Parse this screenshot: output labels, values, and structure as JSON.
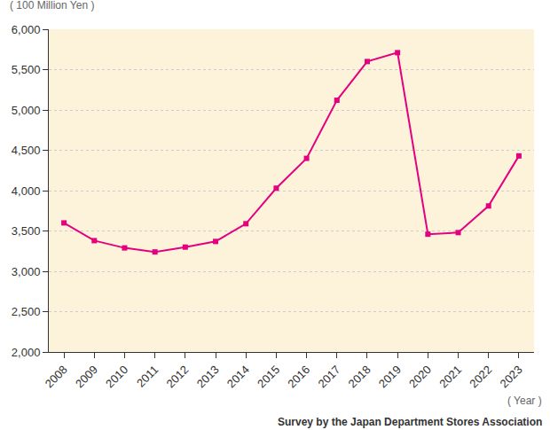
{
  "chart_data": {
    "type": "line",
    "ylabel": "( 100 Million Yen )",
    "xlabel": "( Year )",
    "annotations": [
      "Survey by the Japan Department Stores Association"
    ],
    "categories": [
      "2008",
      "2009",
      "2010",
      "2011",
      "2012",
      "2013",
      "2014",
      "2015",
      "2016",
      "2017",
      "2018",
      "2019",
      "2020",
      "2021",
      "2022",
      "2023"
    ],
    "values": [
      3600,
      3380,
      3290,
      3240,
      3300,
      3370,
      3590,
      4030,
      4400,
      5120,
      5600,
      5710,
      3460,
      3480,
      3810,
      4430
    ],
    "color": "#e4007f",
    "marker": "square",
    "line_style": "solid",
    "ylim": [
      2000,
      6000
    ],
    "yticks": [
      {
        "value": 2000,
        "label": "2,000"
      },
      {
        "value": 2500,
        "label": "2,500"
      },
      {
        "value": 3000,
        "label": "3,000"
      },
      {
        "value": 3500,
        "label": "3,500"
      },
      {
        "value": 4000,
        "label": "4,000"
      },
      {
        "value": 4500,
        "label": "4,500"
      },
      {
        "value": 5000,
        "label": "5,000"
      },
      {
        "value": 5500,
        "label": "5,500"
      },
      {
        "value": 6000,
        "label": "6,000"
      }
    ],
    "grid": true
  }
}
